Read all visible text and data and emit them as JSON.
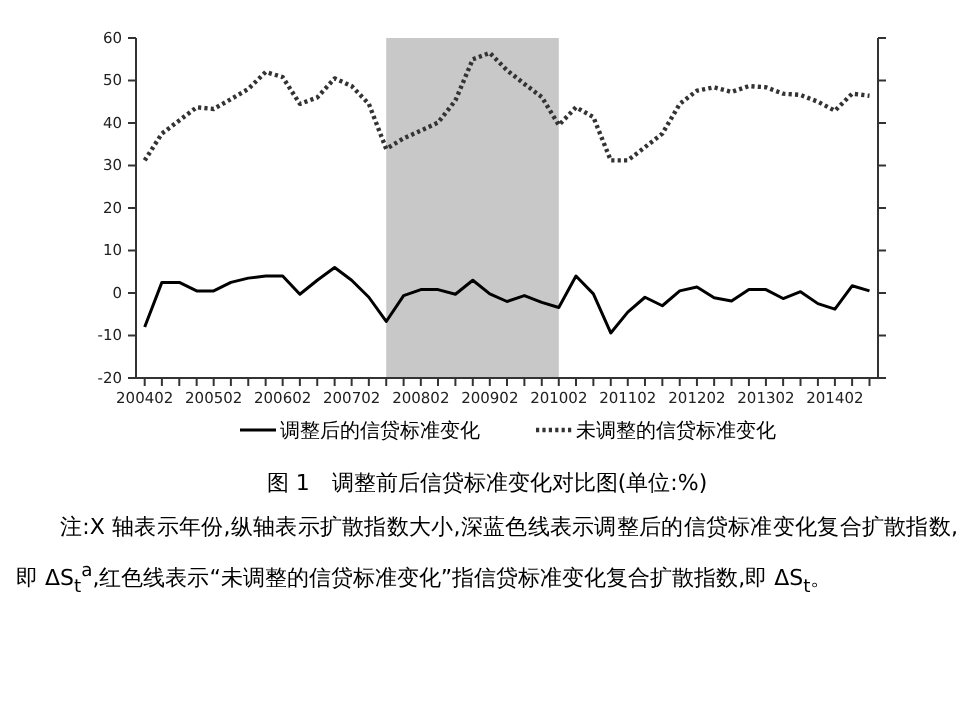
{
  "chart_data": {
    "type": "line",
    "title": "图 1　调整前后信贷标准变化对比图(单位:%)",
    "annotations": [
      "注:X 轴表示年份,纵轴表示扩散指数大小,深蓝色线表示调整后的信贷标准变化复合扩散指数,即 ΔS$_{t}$$^{a}$,红色线表示“未调整的信贷标准变化”指信贷标准变化复合扩散指数,即 ΔS$_{t}$。"
    ],
    "x": [
      "2004-04",
      "2004-07",
      "2004-10",
      "2005-01",
      "2005-04",
      "2005-07",
      "2005-10",
      "2006-01",
      "2006-04",
      "2006-07",
      "2006-10",
      "2007-01",
      "2007-04",
      "2007-07",
      "2007-10",
      "2008-01",
      "2008-04",
      "2008-07",
      "2008-10",
      "2009-01",
      "2009-04",
      "2009-07",
      "2009-10",
      "2010-01",
      "2010-04",
      "2010-07",
      "2010-10",
      "2011-01",
      "2011-04",
      "2011-07",
      "2011-10",
      "2012-01",
      "2012-04",
      "2012-07",
      "2012-10",
      "2013-01",
      "2013-04",
      "2013-07",
      "2013-10",
      "2014-01",
      "2014-04",
      "2014-07",
      "2014-10"
    ],
    "series": [
      {
        "name": "调整后的信贷标准变化",
        "color": "#000000",
        "line_style": "solid",
        "values": [
          -8,
          2.5,
          2.5,
          0.5,
          0.5,
          2.5,
          3.5,
          4,
          4,
          -0.3,
          3,
          6,
          3,
          -1,
          -6.7,
          -0.6,
          0.8,
          0.8,
          -0.3,
          3,
          -0.2,
          -2,
          -0.6,
          -2.2,
          -3.4,
          4,
          -0.2,
          -9.4,
          -4.5,
          -1,
          -3,
          0.5,
          1.4,
          -1.1,
          -1.9,
          0.8,
          0.8,
          -1.3,
          0.3,
          -2.5,
          -3.8,
          1.7,
          0.5
        ]
      },
      {
        "name": "未调整的信贷标准变化",
        "color": "#333333",
        "line_style": "dotted",
        "values": [
          31.2,
          37.5,
          40.6,
          43.7,
          43.3,
          45.6,
          48,
          52,
          50.8,
          44.5,
          46,
          50.5,
          48.7,
          44.5,
          33.9,
          36.4,
          38.2,
          40.1,
          45.3,
          55,
          56.5,
          52.4,
          49.2,
          46.1,
          39.5,
          43.7,
          41.4,
          31.2,
          31.2,
          34.3,
          37.5,
          44.5,
          47.6,
          48.4,
          47.3,
          48.7,
          48.4,
          46.9,
          46.6,
          45,
          42.9,
          46.9,
          46.4
        ]
      }
    ],
    "bands": [
      {
        "axis": "x",
        "from": "2007-10",
        "to": "2010-04",
        "color": "#c8c8c8"
      }
    ],
    "xlim": [
      "2004-02-15",
      "2014-11-15"
    ],
    "xticks": [
      {
        "value": "2004-04",
        "label": "200402"
      },
      {
        "value": "2004-07",
        "label": null
      },
      {
        "value": "2004-10",
        "label": null
      },
      {
        "value": "2005-01",
        "label": null
      },
      {
        "value": "2005-04",
        "label": "200502"
      },
      {
        "value": "2005-07",
        "label": null
      },
      {
        "value": "2005-10",
        "label": null
      },
      {
        "value": "2006-01",
        "label": null
      },
      {
        "value": "2006-04",
        "label": "200602"
      },
      {
        "value": "2006-07",
        "label": null
      },
      {
        "value": "2006-10",
        "label": null
      },
      {
        "value": "2007-01",
        "label": null
      },
      {
        "value": "2007-04",
        "label": "200702"
      },
      {
        "value": "2007-07",
        "label": null
      },
      {
        "value": "2007-10",
        "label": null
      },
      {
        "value": "2008-01",
        "label": null
      },
      {
        "value": "2008-04",
        "label": "200802"
      },
      {
        "value": "2008-07",
        "label": null
      },
      {
        "value": "2008-10",
        "label": null
      },
      {
        "value": "2009-01",
        "label": null
      },
      {
        "value": "2009-04",
        "label": "200902"
      },
      {
        "value": "2009-07",
        "label": null
      },
      {
        "value": "2009-10",
        "label": null
      },
      {
        "value": "2010-01",
        "label": null
      },
      {
        "value": "2010-04",
        "label": "201002"
      },
      {
        "value": "2010-07",
        "label": null
      },
      {
        "value": "2010-10",
        "label": null
      },
      {
        "value": "2011-01",
        "label": null
      },
      {
        "value": "2011-04",
        "label": "201102"
      },
      {
        "value": "2011-07",
        "label": null
      },
      {
        "value": "2011-10",
        "label": null
      },
      {
        "value": "2012-01",
        "label": null
      },
      {
        "value": "2012-04",
        "label": "201202"
      },
      {
        "value": "2012-07",
        "label": null
      },
      {
        "value": "2012-10",
        "label": null
      },
      {
        "value": "2013-01",
        "label": null
      },
      {
        "value": "2013-04",
        "label": "201302"
      },
      {
        "value": "2013-07",
        "label": null
      },
      {
        "value": "2013-10",
        "label": null
      },
      {
        "value": "2014-01",
        "label": null
      },
      {
        "value": "2014-04",
        "label": "201402"
      },
      {
        "value": "2014-07",
        "label": null
      },
      {
        "value": "2014-10",
        "label": null
      }
    ],
    "ylim": [
      -20,
      60
    ],
    "yticks": [
      -20,
      -10,
      0,
      10,
      20,
      30,
      40,
      50,
      60
    ],
    "grid": false,
    "legend": "bottom",
    "marker": "none"
  }
}
